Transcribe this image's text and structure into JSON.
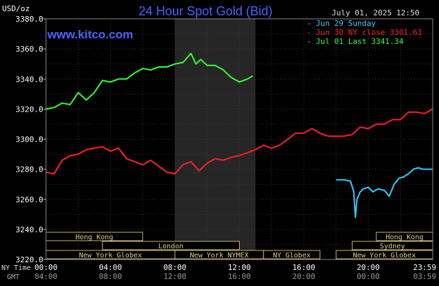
{
  "chart_data": {
    "type": "line",
    "title": "24 Hour Spot Gold (Bid)",
    "source_watermark": "www.kitco.com",
    "date_time": "July 01, 2025 12:50",
    "y_unit_label": "USD/oz",
    "ylim": [
      3220,
      3380
    ],
    "yticks": [
      "3380.0",
      "3360.0",
      "3340.0",
      "3320.0",
      "3300.0",
      "3280.0",
      "3260.0",
      "3240.0",
      "3220.0"
    ],
    "x_row_labels": [
      "NY Time",
      "GMT"
    ],
    "x_ticks_ny": [
      "00:00",
      "04:00",
      "08:00",
      "12:00",
      "16:00",
      "20:00",
      "23:59"
    ],
    "x_ticks_gmt": [
      "04:00",
      "08:00",
      "12:00",
      "16:00",
      "20:00",
      "00:00",
      "03:59"
    ],
    "x_range_hours": [
      0,
      24
    ],
    "shaded_region_hours": [
      8,
      13
    ],
    "grid": true,
    "legend_placement": "top-right",
    "series": [
      {
        "name": "Jun 29 Sunday",
        "legend_label": "- Jun 29 Sunday",
        "color": "#33ccff",
        "x": [
          18.0,
          18.5,
          18.9,
          19.1,
          19.2,
          19.3,
          19.5,
          19.7,
          20.0,
          20.3,
          20.6,
          21.0,
          21.3,
          21.6,
          21.9,
          22.2,
          22.5,
          22.8,
          23.1,
          23.4,
          23.7,
          23.98
        ],
        "y": [
          3273,
          3273,
          3272,
          3265,
          3248,
          3260,
          3265,
          3267,
          3268,
          3265,
          3267,
          3266,
          3262,
          3270,
          3274,
          3275,
          3277,
          3280,
          3281,
          3280,
          3280,
          3280
        ]
      },
      {
        "name": "Jun 30 NY close 3301.63",
        "legend_label": "- Jun 30 NY close 3301.63",
        "color": "#ff2020",
        "x": [
          0,
          0.5,
          1,
          1.5,
          2,
          2.5,
          3,
          3.5,
          4,
          4.5,
          5,
          5.5,
          6,
          6.5,
          7,
          7.5,
          8,
          8.5,
          9,
          9.5,
          10,
          10.5,
          11,
          11.5,
          12,
          12.5,
          13,
          13.5,
          14,
          14.5,
          15,
          15.5,
          16,
          16.5,
          17,
          17.5,
          18,
          18.5,
          19,
          19.5,
          20,
          20.5,
          21,
          21.5,
          22,
          22.5,
          23,
          23.5,
          23.98
        ],
        "y": [
          3278,
          3277,
          3286,
          3289,
          3290,
          3293,
          3294,
          3295,
          3292,
          3294,
          3287,
          3285,
          3283,
          3286,
          3282,
          3278,
          3277,
          3283,
          3285,
          3279,
          3284,
          3287,
          3286,
          3288,
          3289,
          3291,
          3293,
          3296,
          3294,
          3296,
          3300,
          3304,
          3304,
          3307,
          3304,
          3302,
          3302,
          3302,
          3303,
          3308,
          3307,
          3310,
          3310,
          3313,
          3313,
          3318,
          3318,
          3317,
          3320
        ]
      },
      {
        "name": "Jul 01 Last 3341.34",
        "legend_label": "- Jul 01 Last 3341.34",
        "color": "#33ff33",
        "x": [
          0,
          0.5,
          1,
          1.5,
          2,
          2.5,
          3,
          3.5,
          4,
          4.5,
          5,
          5.5,
          6,
          6.5,
          7,
          7.5,
          8,
          8.5,
          9,
          9.3,
          9.6,
          10,
          10.5,
          11,
          11.5,
          12,
          12.5,
          12.83
        ],
        "y": [
          3320,
          3321,
          3324,
          3323,
          3331,
          3326,
          3331,
          3339,
          3338,
          3340,
          3340,
          3344,
          3347,
          3346,
          3348,
          3348,
          3350,
          3351,
          3357,
          3350,
          3353,
          3349,
          3349,
          3346,
          3341,
          3338,
          3340,
          3342
        ]
      }
    ],
    "sessions": [
      {
        "label": "Hong Kong",
        "row": 0,
        "start": 0,
        "end": 6
      },
      {
        "label": "London",
        "row": 1,
        "start": 3.5,
        "end": 12
      },
      {
        "label": "New York Globex",
        "row": 2,
        "start": 0,
        "end": 8
      },
      {
        "label": "New York NYMEX",
        "row": 2,
        "start": 8,
        "end": 13.5
      },
      {
        "label": "NY Globex",
        "row": 2,
        "start": 13.5,
        "end": 17
      },
      {
        "label": "Hong Kong",
        "row": 0,
        "start": 20.5,
        "end": 24
      },
      {
        "label": "Sydney",
        "row": 1,
        "start": 19,
        "end": 24
      },
      {
        "label": "New York Globex",
        "row": 2,
        "start": 18,
        "end": 24
      }
    ]
  }
}
